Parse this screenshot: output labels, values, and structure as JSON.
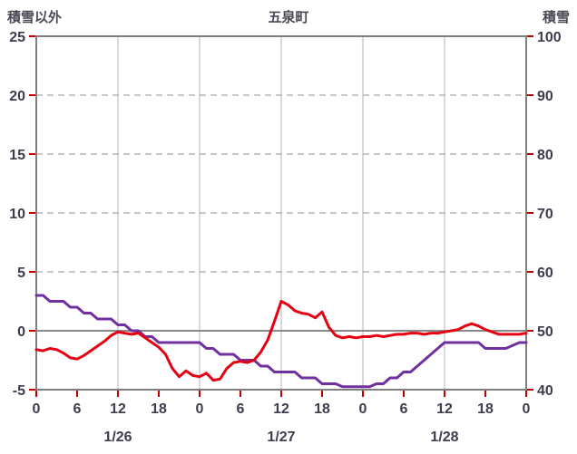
{
  "chart_data": {
    "type": "line",
    "title": "五泉町",
    "left_axis": {
      "label": "積雪以外",
      "min": -5,
      "max": 25,
      "ticks": [
        25,
        20,
        15,
        10,
        5,
        0,
        -5
      ]
    },
    "right_axis": {
      "label": "積雪",
      "min": 40,
      "max": 100,
      "ticks": [
        100,
        90,
        80,
        70,
        60,
        50,
        40
      ]
    },
    "x_axis": {
      "total_hours": 72,
      "tick_interval_hours": 6,
      "tick_labels": [
        "0",
        "6",
        "12",
        "18",
        "0",
        "6",
        "12",
        "18",
        "0",
        "6",
        "12",
        "18",
        "0"
      ],
      "date_labels": [
        {
          "label": "1/26",
          "hour": 12
        },
        {
          "label": "1/27",
          "hour": 36
        },
        {
          "label": "1/28",
          "hour": 60
        }
      ]
    },
    "grid": {
      "v_line_every_hours": 12,
      "h_dashed_lines": true,
      "zero_line_value_left_axis": 0
    },
    "series": [
      {
        "name": "purple-line",
        "axis": "right",
        "color": "#7030a0",
        "values": [
          56,
          56,
          55,
          55,
          55,
          54,
          54,
          53,
          53,
          52,
          52,
          52,
          51,
          51,
          50,
          50,
          49,
          49,
          48,
          48,
          48,
          48,
          48,
          48,
          48,
          47,
          47,
          46,
          46,
          46,
          45,
          45,
          45,
          44,
          44,
          43,
          43,
          43,
          43,
          42,
          42,
          42,
          41,
          41,
          41,
          40.5,
          40.5,
          40.5,
          40.5,
          40.5,
          41,
          41,
          42,
          42,
          43,
          43,
          44,
          45,
          46,
          47,
          48,
          48,
          48,
          48,
          48,
          48,
          47,
          47,
          47,
          47,
          47.5,
          48,
          48
        ]
      },
      {
        "name": "red-line",
        "axis": "left",
        "color": "#e60012",
        "values": [
          -1.6,
          -1.7,
          -1.5,
          -1.6,
          -1.9,
          -2.3,
          -2.4,
          -2.1,
          -1.7,
          -1.3,
          -0.9,
          -0.4,
          -0.1,
          -0.2,
          -0.3,
          -0.2,
          -0.6,
          -1.0,
          -1.4,
          -2.0,
          -3.2,
          -3.9,
          -3.4,
          -3.8,
          -3.9,
          -3.6,
          -4.2,
          -4.1,
          -3.2,
          -2.7,
          -2.6,
          -2.7,
          -2.5,
          -1.8,
          -0.8,
          0.8,
          2.5,
          2.2,
          1.7,
          1.5,
          1.4,
          1.1,
          1.6,
          0.3,
          -0.4,
          -0.6,
          -0.5,
          -0.6,
          -0.5,
          -0.5,
          -0.4,
          -0.5,
          -0.4,
          -0.3,
          -0.3,
          -0.2,
          -0.2,
          -0.3,
          -0.2,
          -0.2,
          -0.1,
          0.0,
          0.1,
          0.4,
          0.6,
          0.4,
          0.1,
          -0.1,
          -0.3,
          -0.3,
          -0.3,
          -0.3,
          -0.2
        ]
      }
    ],
    "style_colors": {
      "tick_mark": "#c00000",
      "border": "#7f7f7f",
      "zero_line": "#8a8a8a",
      "v_grid": "#b3b3b3",
      "h_grid_dashed": "#a6a6a6"
    }
  }
}
